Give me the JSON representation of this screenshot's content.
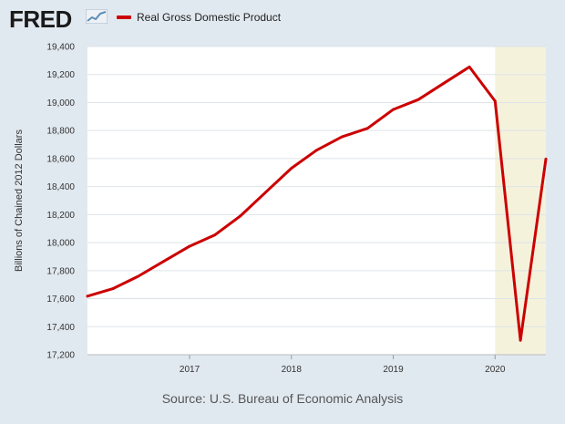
{
  "header": {
    "logo_text": "FRED",
    "logo_icon": "line-graph-icon"
  },
  "source": "Source: U.S. Bureau of Economic Analysis",
  "colors": {
    "line": "#cc0000",
    "recession": "#f5f2dc",
    "plot_bg": "#ffffff",
    "page_bg": "#e1e9f0"
  },
  "chart_data": {
    "type": "line",
    "title": "",
    "xlabel": "",
    "ylabel": "Billions of Chained 2012 Dollars",
    "ylim": [
      17200,
      19400
    ],
    "y_ticks": [
      17200,
      17400,
      17600,
      17800,
      18000,
      18200,
      18400,
      18600,
      18800,
      19000,
      19200,
      19400
    ],
    "y_tick_labels": [
      "17,200",
      "17,400",
      "17,600",
      "17,800",
      "18,000",
      "18,200",
      "18,400",
      "18,600",
      "18,800",
      "19,000",
      "19,200",
      "19,400"
    ],
    "x_ticks": [
      "2017",
      "2018",
      "2019",
      "2020"
    ],
    "grid": true,
    "legend_position": "top-left",
    "recession_shading": {
      "start": "2020-01-01",
      "end": "2020-07-01"
    },
    "series": [
      {
        "name": "Real Gross Domestic Product",
        "x": [
          "2016-01-01",
          "2016-04-01",
          "2016-07-01",
          "2016-10-01",
          "2017-01-01",
          "2017-04-01",
          "2017-07-01",
          "2017-10-01",
          "2018-01-01",
          "2018-04-01",
          "2018-07-01",
          "2018-10-01",
          "2019-01-01",
          "2019-04-01",
          "2019-07-01",
          "2019-10-01",
          "2020-01-01",
          "2020-04-01",
          "2020-07-01"
        ],
        "values": [
          17618,
          17671,
          17760,
          17868,
          17974,
          18054,
          18189,
          18360,
          18531,
          18659,
          18755,
          18816,
          18950,
          19021,
          19138,
          19254,
          19010,
          17303,
          18597
        ]
      }
    ]
  }
}
